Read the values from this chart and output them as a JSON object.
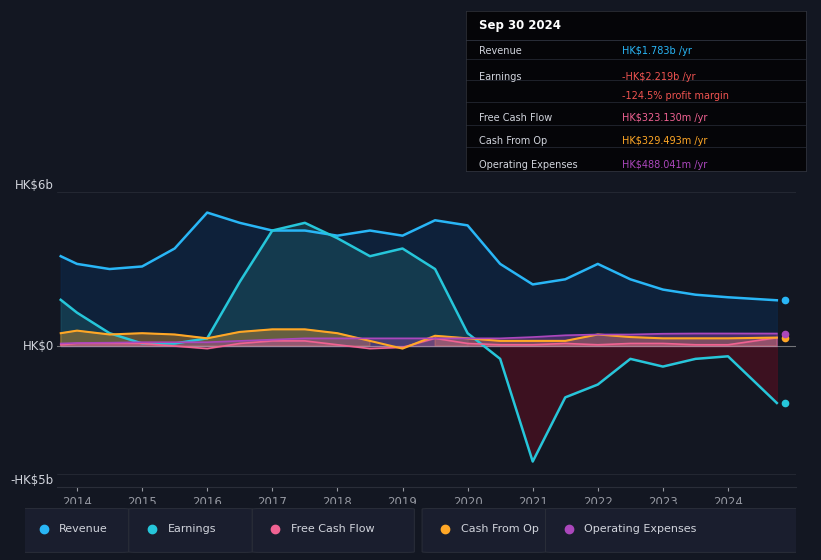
{
  "background_color": "#131722",
  "plot_bg_color": "#131722",
  "years": [
    2013.75,
    2014.0,
    2014.5,
    2015.0,
    2015.5,
    2016.0,
    2016.5,
    2017.0,
    2017.5,
    2018.0,
    2018.5,
    2019.0,
    2019.5,
    2020.0,
    2020.5,
    2021.0,
    2021.5,
    2022.0,
    2022.5,
    2023.0,
    2023.5,
    2024.0,
    2024.75
  ],
  "revenue": [
    3.5,
    3.2,
    3.0,
    3.1,
    3.8,
    5.2,
    4.8,
    4.5,
    4.5,
    4.3,
    4.5,
    4.3,
    4.9,
    4.7,
    3.2,
    2.4,
    2.6,
    3.2,
    2.6,
    2.2,
    2.0,
    1.9,
    1.783
  ],
  "earnings": [
    1.8,
    1.3,
    0.5,
    0.1,
    0.1,
    0.3,
    2.5,
    4.5,
    4.8,
    4.2,
    3.5,
    3.8,
    3.0,
    0.5,
    -0.5,
    -4.5,
    -2.0,
    -1.5,
    -0.5,
    -0.8,
    -0.5,
    -0.4,
    -2.219
  ],
  "free_cash_flow": [
    0.05,
    0.1,
    0.1,
    0.1,
    0.0,
    -0.1,
    0.1,
    0.2,
    0.2,
    0.05,
    -0.1,
    -0.05,
    0.3,
    0.1,
    0.05,
    0.05,
    0.1,
    0.05,
    0.1,
    0.1,
    0.05,
    0.05,
    0.323
  ],
  "cash_from_op": [
    0.5,
    0.6,
    0.45,
    0.5,
    0.45,
    0.3,
    0.55,
    0.65,
    0.65,
    0.5,
    0.2,
    -0.1,
    0.4,
    0.3,
    0.2,
    0.2,
    0.2,
    0.45,
    0.35,
    0.3,
    0.3,
    0.3,
    0.329
  ],
  "operating_expenses": [
    0.1,
    0.12,
    0.13,
    0.15,
    0.15,
    0.15,
    0.2,
    0.25,
    0.3,
    0.3,
    0.3,
    0.3,
    0.3,
    0.3,
    0.3,
    0.35,
    0.42,
    0.45,
    0.45,
    0.48,
    0.49,
    0.49,
    0.488
  ],
  "revenue_color": "#29b6f6",
  "earnings_color": "#26c6da",
  "earnings_fill_pos": "#1a5060",
  "earnings_fill_neg": "#4a1020",
  "revenue_fill": "#0d2645",
  "free_cash_flow_color": "#f06292",
  "cash_from_op_color": "#ffa726",
  "operating_expenses_color": "#ab47bc",
  "zero_line_color": "#aaaaaa",
  "grid_color": "#2a2e39",
  "text_color": "#9598a1",
  "label_color": "#d1d4dc",
  "ylim_top": 6.5,
  "ylim_bottom": -5.5,
  "xlabel_ticks": [
    2014,
    2015,
    2016,
    2017,
    2018,
    2019,
    2020,
    2021,
    2022,
    2023,
    2024
  ],
  "ylabel_top": "HK$6b",
  "ylabel_zero": "HK$0",
  "ylabel_bottom": "-HK$5b",
  "info_box": {
    "date": "Sep 30 2024",
    "revenue_val": "HK$1.783b",
    "revenue_color": "#29b6f6",
    "earnings_val": "-HK$2.219b",
    "earnings_color": "#ef5350",
    "margin_val": "-124.5%",
    "margin_color": "#ef5350",
    "fcf_val": "HK$323.130m",
    "fcf_color": "#f06292",
    "cashop_val": "HK$329.493m",
    "cashop_color": "#ffa726",
    "opex_val": "HK$488.041m",
    "opex_color": "#ab47bc"
  },
  "legend_items": [
    "Revenue",
    "Earnings",
    "Free Cash Flow",
    "Cash From Op",
    "Operating Expenses"
  ],
  "legend_colors": [
    "#29b6f6",
    "#26c6da",
    "#f06292",
    "#ffa726",
    "#ab47bc"
  ]
}
